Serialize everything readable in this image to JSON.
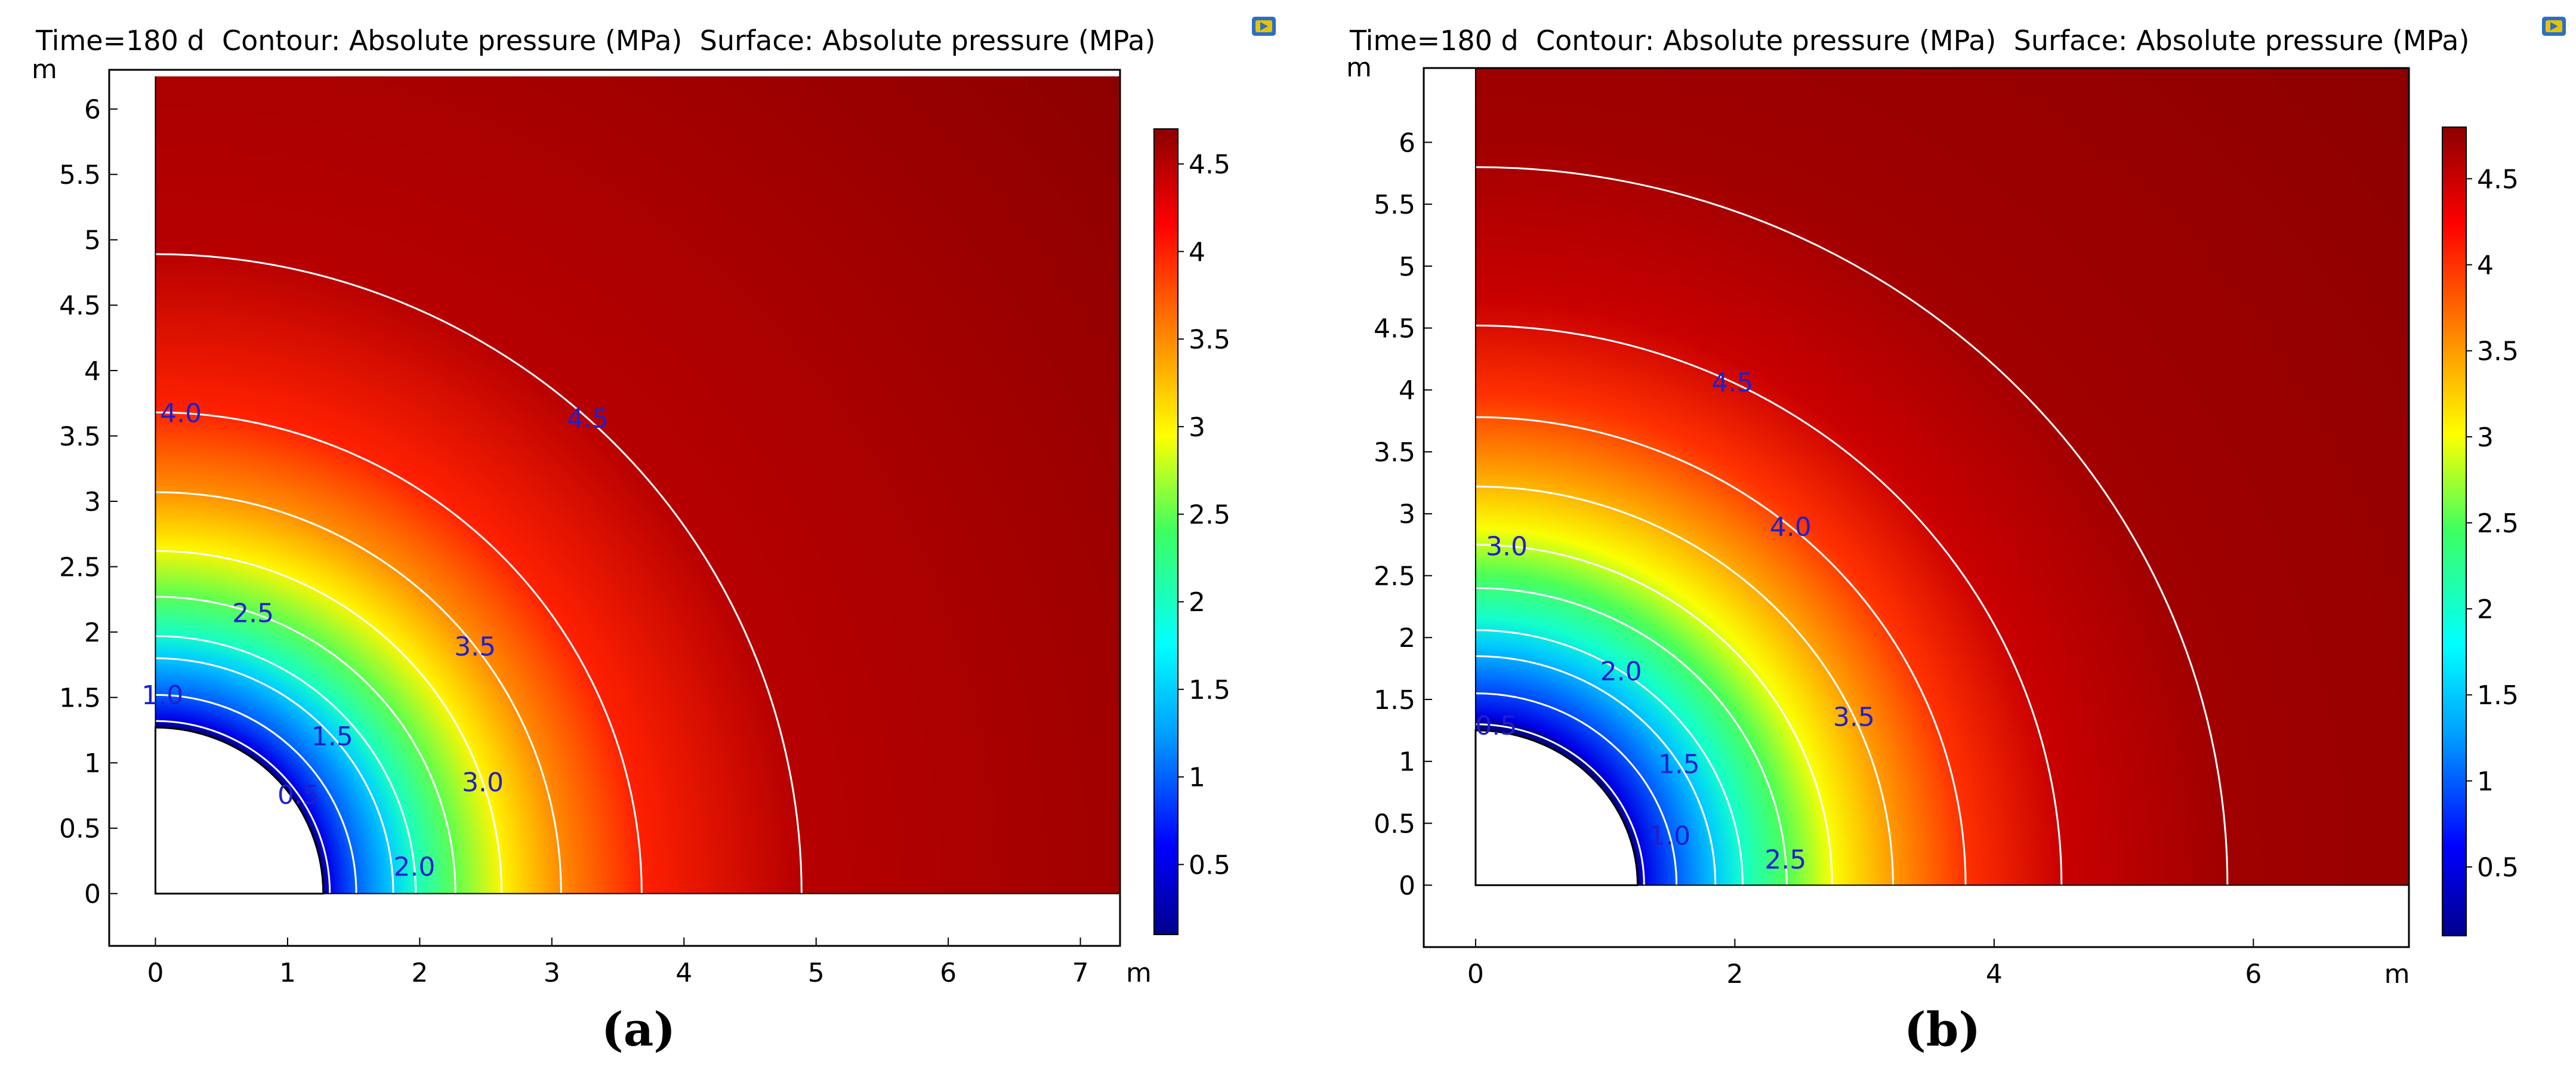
{
  "chart_data": [
    {
      "type": "heatmap",
      "caption": "(a)",
      "title": "Time=180 d  Contour: Absolute pressure (MPa)  Surface: Absolute pressure (MPa)",
      "xlabel": "m",
      "ylabel": "m",
      "xlim": [
        -0.35,
        7.3
      ],
      "ylim": [
        -0.4,
        6.3
      ],
      "xticks": [
        0,
        1,
        2,
        3,
        4,
        5,
        6,
        7
      ],
      "yticks": [
        0,
        0.5,
        1,
        1.5,
        2,
        2.5,
        3,
        3.5,
        4,
        4.5,
        5,
        5.5,
        6
      ],
      "domain_width": 7.3,
      "domain_height": 6.25,
      "wellbore_radius": 1.27,
      "colorbar": {
        "min": 0.1,
        "max": 4.7,
        "ticks": [
          0.5,
          1,
          1.5,
          2,
          2.5,
          3,
          3.5,
          4,
          4.5
        ]
      },
      "contours": [
        {
          "level": "0.5",
          "radius": 1.32,
          "label": "0.5",
          "label_angle": 35
        },
        {
          "level": "1.0",
          "radius": 1.52,
          "label": "1.0",
          "label_angle": 88
        },
        {
          "level": "1.5",
          "radius": 1.8,
          "label": "1.5",
          "label_angle": 42
        },
        {
          "level": "2.0",
          "radius": 1.97,
          "label": "2.0",
          "label_angle": 6
        },
        {
          "level": "2.5",
          "radius": 2.27,
          "label": "2.5",
          "label_angle": 71
        },
        {
          "level": "3.0",
          "radius": 2.62,
          "label": "3.0",
          "label_angle": 19
        },
        {
          "level": "3.5",
          "radius": 3.07,
          "label": "3.5",
          "label_angle": 38
        },
        {
          "level": "4.0",
          "radius": 3.68,
          "label": "4.0",
          "label_angle": 87
        },
        {
          "level": "4.5",
          "radius": 4.89,
          "label": "4.5",
          "label_angle": 48
        }
      ]
    },
    {
      "type": "heatmap",
      "caption": "(b)",
      "title": "Time=180 d  Contour: Absolute pressure (MPa)  Surface: Absolute pressure (MPa)",
      "xlabel": "m",
      "ylabel": "m",
      "xlim": [
        -0.4,
        7.2
      ],
      "ylim": [
        -0.5,
        6.6
      ],
      "xticks": [
        0,
        2,
        4,
        6
      ],
      "yticks": [
        0,
        0.5,
        1,
        1.5,
        2,
        2.5,
        3,
        3.5,
        4,
        4.5,
        5,
        5.5,
        6
      ],
      "domain_width": 7.2,
      "domain_height": 6.6,
      "wellbore_radius": 1.25,
      "colorbar": {
        "min": 0.1,
        "max": 4.8,
        "ticks": [
          0.5,
          1,
          1.5,
          2,
          2.5,
          3,
          3.5,
          4,
          4.5
        ]
      },
      "contours": [
        {
          "level": "0.5",
          "radius": 1.3,
          "label": "0.5",
          "label_angle": 83
        },
        {
          "level": "1.0",
          "radius": 1.55,
          "label": "1.0",
          "label_angle": 15
        },
        {
          "level": "1.5",
          "radius": 1.85,
          "label": "1.5",
          "label_angle": 32
        },
        {
          "level": "2.0",
          "radius": 2.06,
          "label": "2.0",
          "label_angle": 57
        },
        {
          "level": "2.5",
          "radius": 2.4,
          "label": "2.5",
          "label_angle": 5
        },
        {
          "level": "3.0",
          "radius": 2.75,
          "label": "3.0",
          "label_angle": 85
        },
        {
          "level": "3.5",
          "radius": 3.22,
          "label": "3.5",
          "label_angle": 25
        },
        {
          "level": "4.0",
          "radius": 3.78,
          "label": "4.0",
          "label_angle": 50
        },
        {
          "level": "4.5",
          "radius": 4.52,
          "label": "4.5",
          "label_angle": 64
        },
        {
          "level": "4.7",
          "radius": 5.8,
          "label": "",
          "label_angle": 0
        }
      ]
    }
  ]
}
